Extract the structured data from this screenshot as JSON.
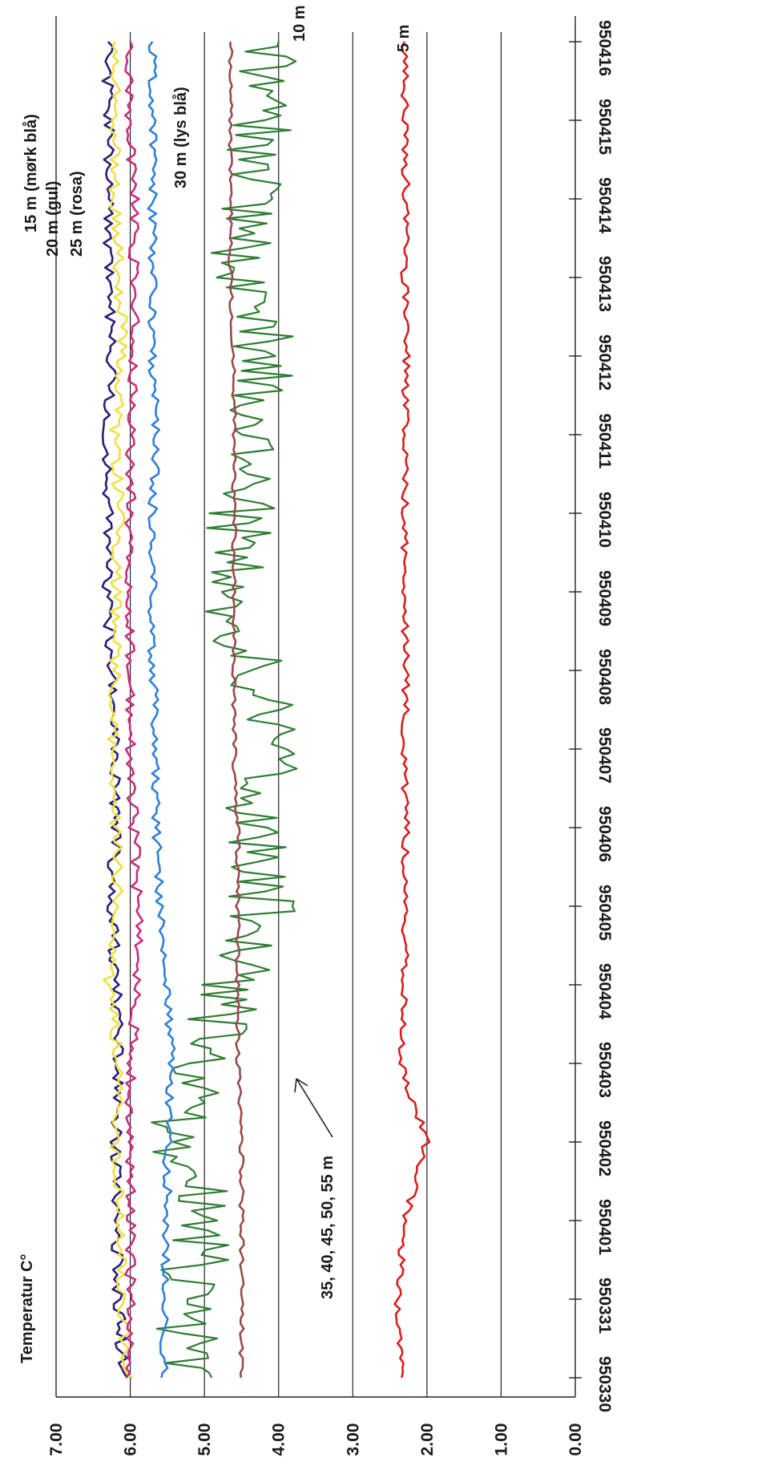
{
  "chart_data": {
    "type": "line",
    "orientation": "rotated-90",
    "title": "",
    "ylabel": "Temperatur C°",
    "xlabel": "",
    "ylim": [
      0,
      7
    ],
    "y_ticks": [
      "0.00",
      "1.00",
      "2.00",
      "3.00",
      "4.00",
      "5.00",
      "6.00",
      "7.00"
    ],
    "categories": [
      "950330",
      "950331",
      "950401",
      "950402",
      "950403",
      "950404",
      "950405",
      "950406",
      "950407",
      "950408",
      "950409",
      "950410",
      "950411",
      "950412",
      "950413",
      "950414",
      "950415",
      "950416"
    ],
    "grid": true,
    "series": [
      {
        "name": "5 m",
        "color": "#d81e1e",
        "values": [
          2.35,
          2.4,
          2.3,
          2.0,
          2.35,
          2.3,
          2.3,
          2.28,
          2.3,
          2.28,
          2.3,
          2.3,
          2.3,
          2.28,
          2.3,
          2.28,
          2.3,
          2.3
        ]
      },
      {
        "name": "10 m",
        "color": "#2e7d32",
        "values": [
          5.1,
          5.3,
          4.9,
          5.4,
          5.0,
          4.6,
          4.2,
          4.4,
          4.1,
          4.3,
          4.7,
          4.5,
          4.3,
          4.1,
          4.6,
          4.4,
          4.2,
          4.0
        ]
      },
      {
        "name": "15 m (mørk blå)",
        "color": "#2a1f7a",
        "values": [
          6.1,
          6.15,
          6.2,
          6.2,
          6.15,
          6.2,
          6.25,
          6.2,
          6.2,
          6.25,
          6.3,
          6.3,
          6.3,
          6.25,
          6.3,
          6.3,
          6.3,
          6.3
        ]
      },
      {
        "name": "20 m (gul)",
        "color": "#f0e040",
        "values": [
          6.05,
          6.1,
          6.15,
          6.2,
          6.15,
          6.3,
          6.15,
          6.2,
          6.25,
          6.2,
          6.2,
          6.15,
          6.2,
          6.1,
          6.15,
          6.2,
          6.2,
          6.2
        ]
      },
      {
        "name": "25 m (rosa)",
        "color": "#c82c80",
        "values": [
          6.0,
          6.0,
          6.0,
          6.0,
          6.0,
          5.9,
          5.9,
          5.95,
          6.0,
          6.0,
          6.0,
          6.0,
          6.0,
          5.95,
          5.95,
          5.95,
          6.0,
          6.0
        ]
      },
      {
        "name": "30 m (lys blå)",
        "color": "#2f7fd8",
        "values": [
          5.55,
          5.55,
          5.5,
          5.5,
          5.45,
          5.5,
          5.6,
          5.65,
          5.65,
          5.7,
          5.7,
          5.7,
          5.65,
          5.7,
          5.7,
          5.7,
          5.7,
          5.7
        ]
      },
      {
        "name": "35, 40, 45, 50, 55 m",
        "color": "#9a4a4a",
        "values": [
          4.5,
          4.5,
          4.5,
          4.5,
          4.55,
          4.55,
          4.55,
          4.55,
          4.6,
          4.6,
          4.6,
          4.6,
          4.6,
          4.6,
          4.65,
          4.65,
          4.65,
          4.65
        ]
      }
    ]
  }
}
